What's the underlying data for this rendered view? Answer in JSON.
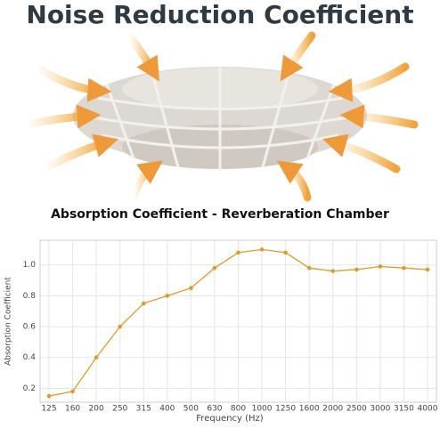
{
  "chart_data": {
    "type": "line",
    "title": "Noise Reduction Coefficient",
    "subtitle": "Absorption Coefficient - Reverberation Chamber",
    "x_label": "Frequency (Hz)",
    "y_label": "Absorption Coefficient",
    "categories": [
      "125",
      "160",
      "200",
      "250",
      "315",
      "400",
      "500",
      "630",
      "800",
      "1000",
      "1250",
      "1600",
      "2000",
      "2500",
      "3000",
      "3150",
      "4000"
    ],
    "values": [
      0.15,
      0.18,
      0.4,
      0.6,
      0.75,
      0.8,
      0.85,
      0.98,
      1.08,
      1.1,
      1.08,
      0.98,
      0.96,
      0.97,
      0.99,
      0.98,
      0.97
    ],
    "color": "#e09a2c",
    "ylim": [
      0.11,
      1.16
    ],
    "yticks": [
      0.2,
      0.4,
      0.6,
      0.8,
      {
        "value": 1.0,
        "label": "1.0"
      }
    ],
    "grid": true
  }
}
